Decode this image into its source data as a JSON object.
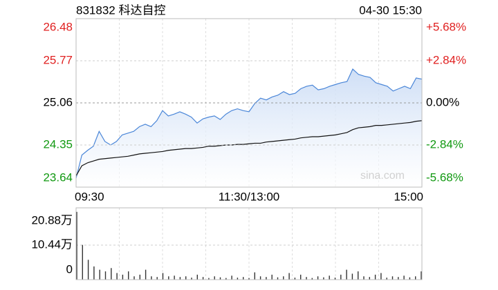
{
  "header": {
    "title": "831832 科达自控",
    "datetime": "04-30 15:30"
  },
  "watermark": "sina.com",
  "chart_data": [
    {
      "type": "line",
      "x_labels": [
        "09:30",
        "11:30/13:00",
        "15:00"
      ],
      "colors": {
        "up": "#e02020",
        "down": "#119911",
        "flat": "#000000"
      },
      "series": [
        {
          "color": "#4a86d8",
          "fill": "#dbe7f8",
          "values": [
            23.79,
            24.18,
            24.26,
            24.33,
            24.58,
            24.41,
            24.35,
            24.41,
            24.52,
            24.55,
            24.58,
            24.66,
            24.7,
            24.66,
            24.76,
            24.93,
            24.84,
            24.87,
            24.91,
            24.87,
            24.82,
            24.72,
            24.79,
            24.82,
            24.84,
            24.78,
            24.87,
            24.93,
            24.96,
            24.93,
            24.91,
            25.05,
            25.14,
            25.11,
            25.16,
            25.19,
            25.25,
            25.2,
            25.22,
            25.3,
            25.34,
            25.36,
            25.28,
            25.3,
            25.34,
            25.37,
            25.4,
            25.42,
            25.63,
            25.54,
            25.51,
            25.49,
            25.4,
            25.37,
            25.34,
            25.26,
            25.3,
            25.34,
            25.3,
            25.48,
            25.46
          ]
        },
        {
          "color": "#111111",
          "values": [
            23.83,
            24.0,
            24.05,
            24.08,
            24.11,
            24.12,
            24.13,
            24.14,
            24.15,
            24.16,
            24.18,
            24.2,
            24.21,
            24.22,
            24.23,
            24.24,
            24.26,
            24.27,
            24.28,
            24.29,
            24.29,
            24.3,
            24.31,
            24.33,
            24.33,
            24.34,
            24.35,
            24.35,
            24.36,
            24.36,
            24.37,
            24.38,
            24.38,
            24.4,
            24.41,
            24.42,
            24.43,
            24.44,
            24.45,
            24.47,
            24.48,
            24.49,
            24.49,
            24.5,
            24.51,
            24.52,
            24.54,
            24.56,
            24.61,
            24.64,
            24.65,
            24.66,
            24.68,
            24.68,
            24.69,
            24.7,
            24.71,
            24.72,
            24.73,
            24.75,
            24.76
          ]
        }
      ],
      "ylim": [
        23.64,
        26.48
      ],
      "yticks": [
        26.48,
        25.77,
        25.06,
        24.35,
        23.64
      ],
      "y2lim": [
        -5.68,
        5.68
      ],
      "y2ticks": [
        {
          "value": 5.68,
          "label": "+5.68%"
        },
        {
          "value": 2.84,
          "label": "+2.84%"
        },
        {
          "value": 0,
          "label": "0.00%"
        },
        {
          "value": -2.84,
          "label": "-2.84%"
        },
        {
          "value": -5.68,
          "label": "-5.68%"
        }
      ],
      "grid": true
    },
    {
      "type": "bar",
      "color": "#333333",
      "values": [
        20.5,
        10.5,
        6,
        4,
        3,
        2.5,
        3.5,
        2,
        1.5,
        2.5,
        1,
        1.5,
        3,
        1,
        0.8,
        2,
        1,
        1.2,
        0.8,
        1,
        0.6,
        1.5,
        0.8,
        0.5,
        1,
        0.7,
        0.5,
        1.2,
        0.6,
        0.8,
        0.5,
        2.2,
        1,
        0.8,
        1.5,
        0.7,
        1,
        2,
        0.6,
        1.5,
        0.8,
        0.5,
        1,
        0.7,
        1.2,
        0.6,
        1.5,
        3,
        1.8,
        2.5,
        1,
        0.8,
        1.5,
        2,
        0.6,
        1,
        0.8,
        1.2,
        0.7,
        1,
        2.5
      ],
      "ylim": [
        0,
        20.88
      ],
      "yticks": [
        {
          "value": 20.88,
          "label": "20.88万"
        },
        {
          "value": 10.44,
          "label": "10.44万"
        },
        0
      ],
      "grid": true
    }
  ]
}
